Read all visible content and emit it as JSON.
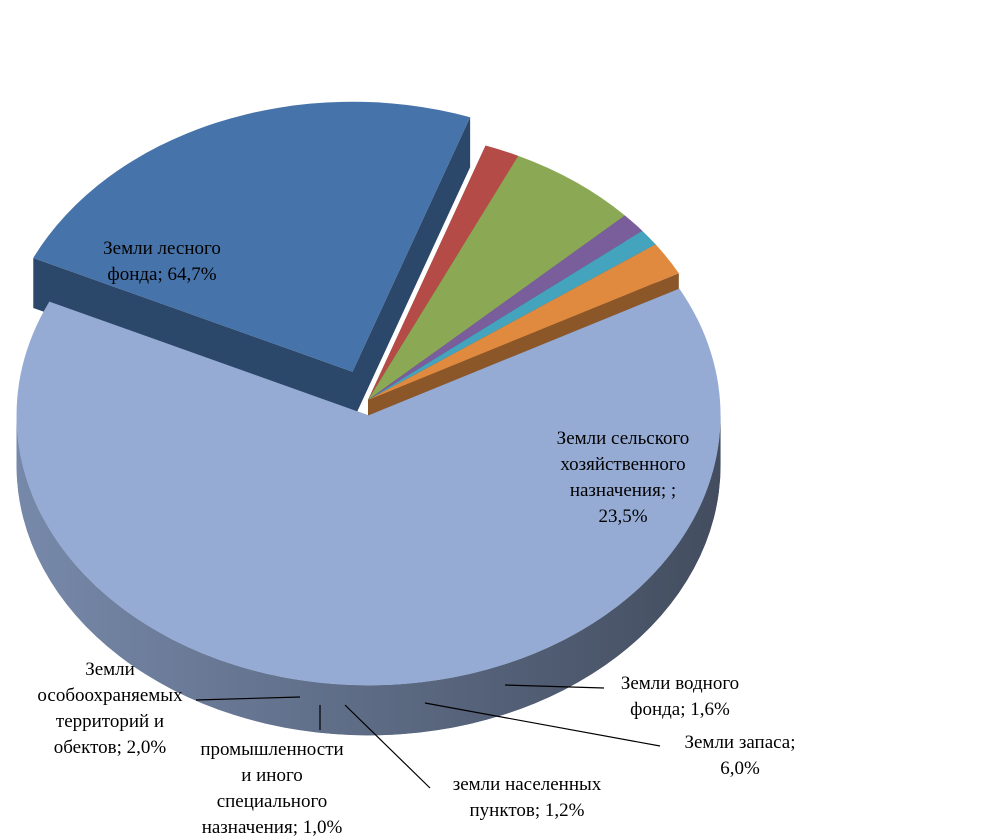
{
  "chart_data": {
    "type": "pie",
    "title": "",
    "slices": [
      {
        "name": "forest",
        "label_lines": [
          "Земли лесного",
          "фонда; 64,7%"
        ],
        "value": 64.7,
        "color": "#95abd4"
      },
      {
        "name": "agricultural",
        "label_lines": [
          "Земли сельского",
          "хозяйственного",
          "назначения; ;",
          "23,5%"
        ],
        "value": 23.5,
        "color": "#4673a9"
      },
      {
        "name": "water",
        "label_lines": [
          "Земли водного",
          "фонда; 1,6%"
        ],
        "value": 1.6,
        "color": "#b44b47"
      },
      {
        "name": "reserve",
        "label_lines": [
          "Земли запаса;",
          "6,0%"
        ],
        "value": 6.0,
        "color": "#8ba954"
      },
      {
        "name": "settlements",
        "label_lines": [
          "земли населенных",
          "пунктов; 1,2%"
        ],
        "value": 1.2,
        "color": "#7a5e9c"
      },
      {
        "name": "industry",
        "label_lines": [
          "промышленности",
          "и иного",
          "специального",
          "назначения; 1,0%"
        ],
        "value": 1.0,
        "color": "#45a4bd"
      },
      {
        "name": "protected",
        "label_lines": [
          "Земли",
          "особоохраняемых",
          "территорий и",
          "обектов; 2,0%"
        ],
        "value": 2.0,
        "color": "#e08a40"
      }
    ]
  }
}
